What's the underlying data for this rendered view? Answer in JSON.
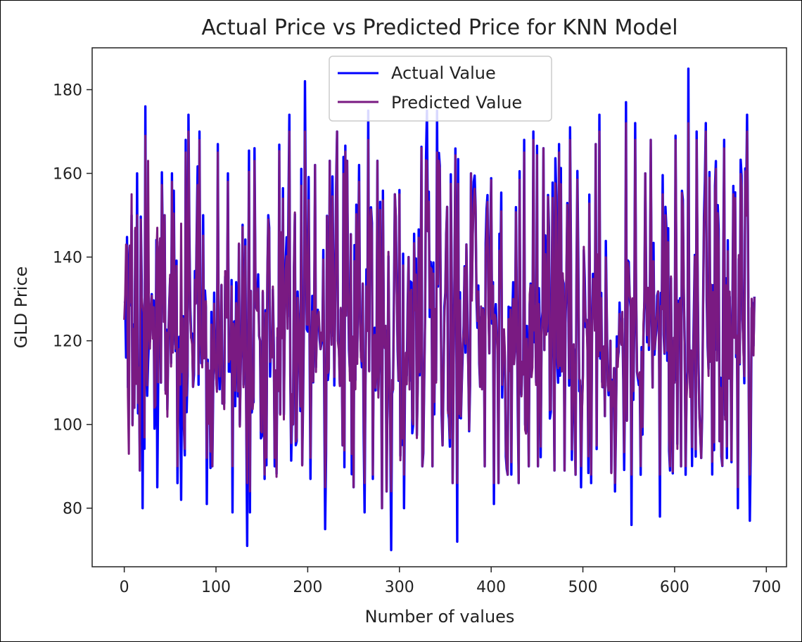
{
  "chart_data": {
    "type": "line",
    "title": "Actual Price vs Predicted Price for KNN Model",
    "xlabel": "Number of values",
    "ylabel": "GLD Price",
    "xlim": [
      -35,
      722
    ],
    "ylim": [
      66,
      190
    ],
    "xticks": [
      0,
      100,
      200,
      300,
      400,
      500,
      600,
      700
    ],
    "yticks": [
      80,
      100,
      120,
      140,
      160,
      180
    ],
    "grid": false,
    "legend_position": "top-center",
    "n_points": 688,
    "seed": 20240613,
    "series": [
      {
        "name": "Actual Value",
        "color": "#0000ff",
        "keypoints": [
          [
            0,
            129
          ],
          [
            2,
            116
          ],
          [
            5,
            136
          ],
          [
            8,
            150
          ],
          [
            11,
            104
          ],
          [
            14,
            160
          ],
          [
            17,
            89
          ],
          [
            20,
            80
          ],
          [
            23,
            176
          ],
          [
            26,
            115
          ],
          [
            29,
            128
          ],
          [
            33,
            99
          ],
          [
            36,
            85
          ],
          [
            40,
            110
          ],
          [
            44,
            150
          ],
          [
            48,
            120
          ],
          [
            52,
            160
          ],
          [
            58,
            86
          ],
          [
            62,
            82
          ],
          [
            67,
            168
          ],
          [
            70,
            174
          ],
          [
            75,
            109
          ],
          [
            82,
            170
          ],
          [
            90,
            81
          ],
          [
            96,
            90
          ],
          [
            102,
            167
          ],
          [
            107,
            105
          ],
          [
            113,
            160
          ],
          [
            118,
            79
          ],
          [
            122,
            134
          ],
          [
            128,
            122
          ],
          [
            134,
            71
          ],
          [
            137,
            79
          ],
          [
            142,
            166
          ],
          [
            148,
            120
          ],
          [
            153,
            87
          ],
          [
            158,
            147
          ],
          [
            164,
            90
          ],
          [
            168,
            108
          ],
          [
            175,
            125
          ],
          [
            180,
            174
          ],
          [
            184,
            100
          ],
          [
            190,
            125
          ],
          [
            197,
            182
          ],
          [
            203,
            87
          ],
          [
            208,
            162
          ],
          [
            214,
            118
          ],
          [
            219,
            75
          ],
          [
            224,
            163
          ],
          [
            232,
            170
          ],
          [
            238,
            95
          ],
          [
            243,
            163
          ],
          [
            250,
            85
          ],
          [
            256,
            162
          ],
          [
            262,
            79
          ],
          [
            266,
            175
          ],
          [
            271,
            87
          ],
          [
            276,
            163
          ],
          [
            281,
            80
          ],
          [
            286,
            84
          ],
          [
            291,
            70
          ],
          [
            295,
            155
          ],
          [
            300,
            156
          ],
          [
            305,
            80
          ],
          [
            310,
            140
          ],
          [
            315,
            100
          ],
          [
            320,
            110
          ],
          [
            325,
            90
          ],
          [
            330,
            175
          ],
          [
            336,
            90
          ],
          [
            341,
            175
          ],
          [
            347,
            95
          ],
          [
            352,
            152
          ],
          [
            358,
            86
          ],
          [
            363,
            72
          ],
          [
            368,
            110
          ],
          [
            373,
            143
          ],
          [
            378,
            160
          ],
          [
            383,
            152
          ],
          [
            388,
            109
          ],
          [
            393,
            90
          ],
          [
            398,
            117
          ],
          [
            403,
            81
          ],
          [
            408,
            86
          ],
          [
            413,
            117
          ],
          [
            418,
            88
          ],
          [
            424,
            134
          ],
          [
            430,
            86
          ],
          [
            436,
            168
          ],
          [
            441,
            90
          ],
          [
            446,
            170
          ],
          [
            451,
            90
          ],
          [
            457,
            166
          ],
          [
            463,
            147
          ],
          [
            469,
            89
          ],
          [
            474,
            167
          ],
          [
            480,
            89
          ],
          [
            486,
            171
          ],
          [
            492,
            88
          ],
          [
            498,
            85
          ],
          [
            504,
            125
          ],
          [
            509,
            86
          ],
          [
            514,
            167
          ],
          [
            518,
            174
          ],
          [
            524,
            102
          ],
          [
            530,
            120
          ],
          [
            535,
            84
          ],
          [
            541,
            120
          ],
          [
            547,
            177
          ],
          [
            553,
            76
          ],
          [
            557,
            172
          ],
          [
            563,
            88
          ],
          [
            568,
            160
          ],
          [
            574,
            168
          ],
          [
            579,
            120
          ],
          [
            584,
            78
          ],
          [
            590,
            152
          ],
          [
            595,
            89
          ],
          [
            601,
            169
          ],
          [
            607,
            90
          ],
          [
            612,
            88
          ],
          [
            615,
            185
          ],
          [
            620,
            114
          ],
          [
            624,
            170
          ],
          [
            629,
            92
          ],
          [
            634,
            172
          ],
          [
            639,
            115
          ],
          [
            644,
            157
          ],
          [
            649,
            96
          ],
          [
            654,
            168
          ],
          [
            659,
            111
          ],
          [
            664,
            157
          ],
          [
            669,
            80
          ],
          [
            674,
            125
          ],
          [
            679,
            174
          ],
          [
            682,
            77
          ],
          [
            685,
            129
          ],
          [
            688,
            117
          ]
        ]
      },
      {
        "name": "Predicted Value",
        "color": "#7a1a82",
        "keypoints": [
          [
            0,
            125
          ],
          [
            2,
            143
          ],
          [
            5,
            93
          ],
          [
            8,
            155
          ],
          [
            11,
            104
          ],
          [
            14,
            150
          ],
          [
            17,
            89
          ],
          [
            20,
            128
          ],
          [
            23,
            169
          ],
          [
            26,
            163
          ],
          [
            29,
            128
          ],
          [
            33,
            104
          ],
          [
            36,
            147
          ],
          [
            40,
            110
          ],
          [
            44,
            150
          ],
          [
            48,
            120
          ],
          [
            52,
            158
          ],
          [
            58,
            90
          ],
          [
            62,
            148
          ],
          [
            67,
            165
          ],
          [
            70,
            170
          ],
          [
            75,
            109
          ],
          [
            82,
            168
          ],
          [
            90,
            92
          ],
          [
            96,
            90
          ],
          [
            102,
            165
          ],
          [
            107,
            105
          ],
          [
            113,
            158
          ],
          [
            118,
            90
          ],
          [
            122,
            129
          ],
          [
            128,
            122
          ],
          [
            134,
            86
          ],
          [
            137,
            84
          ],
          [
            142,
            163
          ],
          [
            148,
            120
          ],
          [
            153,
            88
          ],
          [
            158,
            146
          ],
          [
            164,
            92
          ],
          [
            168,
            108
          ],
          [
            175,
            125
          ],
          [
            180,
            170
          ],
          [
            184,
            100
          ],
          [
            190,
            125
          ],
          [
            197,
            170
          ],
          [
            203,
            92
          ],
          [
            208,
            162
          ],
          [
            214,
            118
          ],
          [
            219,
            85
          ],
          [
            224,
            163
          ],
          [
            232,
            170
          ],
          [
            238,
            95
          ],
          [
            243,
            163
          ],
          [
            250,
            85
          ],
          [
            256,
            158
          ],
          [
            262,
            86
          ],
          [
            266,
            168
          ],
          [
            271,
            88
          ],
          [
            276,
            163
          ],
          [
            281,
            80
          ],
          [
            286,
            84
          ],
          [
            291,
            84
          ],
          [
            295,
            155
          ],
          [
            300,
            155
          ],
          [
            305,
            88
          ],
          [
            310,
            140
          ],
          [
            315,
            100
          ],
          [
            320,
            110
          ],
          [
            325,
            90
          ],
          [
            330,
            163
          ],
          [
            336,
            90
          ],
          [
            341,
            165
          ],
          [
            347,
            95
          ],
          [
            352,
            152
          ],
          [
            358,
            86
          ],
          [
            363,
            86
          ],
          [
            368,
            110
          ],
          [
            373,
            143
          ],
          [
            378,
            160
          ],
          [
            383,
            152
          ],
          [
            388,
            109
          ],
          [
            393,
            90
          ],
          [
            398,
            117
          ],
          [
            403,
            86
          ],
          [
            408,
            86
          ],
          [
            413,
            117
          ],
          [
            418,
            88
          ],
          [
            424,
            130
          ],
          [
            430,
            86
          ],
          [
            436,
            165
          ],
          [
            441,
            90
          ],
          [
            446,
            168
          ],
          [
            451,
            90
          ],
          [
            457,
            166
          ],
          [
            463,
            145
          ],
          [
            469,
            89
          ],
          [
            474,
            165
          ],
          [
            480,
            89
          ],
          [
            486,
            168
          ],
          [
            492,
            88
          ],
          [
            498,
            90
          ],
          [
            504,
            125
          ],
          [
            509,
            88
          ],
          [
            514,
            167
          ],
          [
            518,
            170
          ],
          [
            524,
            102
          ],
          [
            530,
            120
          ],
          [
            535,
            86
          ],
          [
            541,
            120
          ],
          [
            547,
            172
          ],
          [
            553,
            88
          ],
          [
            557,
            168
          ],
          [
            563,
            90
          ],
          [
            568,
            160
          ],
          [
            574,
            168
          ],
          [
            579,
            120
          ],
          [
            584,
            88
          ],
          [
            590,
            150
          ],
          [
            595,
            90
          ],
          [
            601,
            168
          ],
          [
            607,
            90
          ],
          [
            612,
            90
          ],
          [
            615,
            172
          ],
          [
            620,
            114
          ],
          [
            624,
            168
          ],
          [
            629,
            92
          ],
          [
            634,
            170
          ],
          [
            639,
            115
          ],
          [
            644,
            155
          ],
          [
            649,
            96
          ],
          [
            654,
            166
          ],
          [
            659,
            111
          ],
          [
            664,
            155
          ],
          [
            669,
            85
          ],
          [
            674,
            125
          ],
          [
            679,
            170
          ],
          [
            682,
            88
          ],
          [
            685,
            125
          ],
          [
            688,
            116
          ]
        ]
      }
    ]
  }
}
